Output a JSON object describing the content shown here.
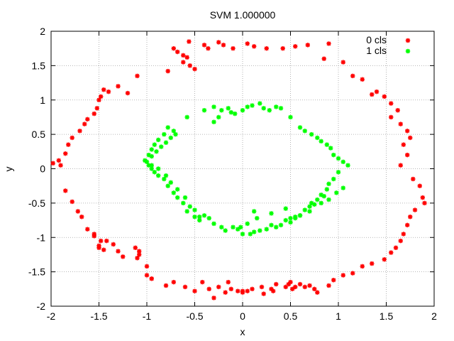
{
  "chart_data": {
    "type": "scatter",
    "title": "SVM 1.000000",
    "xlabel": "x",
    "ylabel": "y",
    "xlim": [
      -2,
      2
    ],
    "ylim": [
      -2,
      2
    ],
    "xticks": [
      -2,
      -1.5,
      -1,
      -0.5,
      0,
      0.5,
      1,
      1.5,
      2
    ],
    "yticks": [
      -2,
      -1.5,
      -1,
      -0.5,
      0,
      0.5,
      1,
      1.5,
      2
    ],
    "xtick_labels": [
      "-2",
      "-1.5",
      "-1",
      "-0.5",
      "0",
      "0.5",
      "1",
      "1.5",
      "2"
    ],
    "ytick_labels": [
      "-2",
      "-1.5",
      "-1",
      "-0.5",
      "0",
      "0.5",
      "1",
      "1.5",
      "2"
    ],
    "grid": true,
    "legend_position": "top-right",
    "series": [
      {
        "name": "0 cls",
        "color": "#ff0000",
        "x": [
          -0.56,
          -0.58,
          -0.4,
          -0.36,
          -0.25,
          -0.2,
          -0.1,
          0.05,
          0.12,
          0.25,
          0.42,
          0.55,
          0.68,
          0.9,
          0.85,
          1.05,
          1.15,
          1.25,
          1.4,
          1.35,
          1.48,
          1.55,
          1.62,
          1.55,
          1.65,
          1.72,
          1.75,
          1.68,
          1.72,
          1.65,
          1.78,
          1.85,
          1.88,
          1.9,
          1.8,
          1.75,
          1.72,
          1.68,
          1.65,
          1.6,
          1.55,
          1.48,
          1.35,
          1.25,
          1.15,
          1.05,
          0.95,
          0.9,
          0.75,
          0.65,
          0.6,
          0.5,
          0.45,
          0.35,
          0.3,
          0.2,
          0.1,
          0.0,
          -0.05,
          -0.12,
          -0.18,
          -0.25,
          -0.35,
          -0.42,
          -0.5,
          -0.6,
          -0.72,
          -0.8,
          -0.95,
          -1.0,
          -1.08,
          -1.12,
          -1.25,
          -1.3,
          -1.35,
          -1.42,
          -1.45,
          -1.5,
          -1.55,
          -1.62,
          -1.68,
          -1.72,
          -1.78,
          -1.85,
          -1.9,
          -1.98,
          -1.92,
          -1.85,
          -1.82,
          -1.78,
          -1.7,
          -1.65,
          -1.62,
          -1.55,
          -1.52,
          -1.5,
          -1.48,
          -1.45,
          -1.4,
          -1.3,
          -1.2,
          -1.1,
          -0.78,
          -0.62,
          -0.55,
          -0.5,
          -0.62,
          -0.68,
          -0.72,
          -1.55,
          -1.48,
          -1.5,
          -1.08,
          -1.1,
          -1.0,
          -0.95,
          0.0,
          0.22,
          0.32,
          0.52,
          0.55,
          0.48,
          0.78,
          0.7,
          -0.15,
          0.05,
          -0.3
        ],
        "y": [
          1.85,
          1.62,
          1.8,
          1.75,
          1.84,
          1.8,
          1.75,
          1.82,
          1.78,
          1.75,
          1.75,
          1.78,
          1.8,
          1.82,
          1.6,
          1.55,
          1.35,
          1.3,
          1.12,
          1.08,
          1.05,
          0.95,
          0.85,
          0.75,
          0.65,
          0.55,
          0.45,
          0.35,
          0.2,
          0.05,
          -0.15,
          -0.25,
          -0.42,
          -0.5,
          -0.6,
          -0.7,
          -0.82,
          -0.95,
          -1.05,
          -1.15,
          -1.22,
          -1.32,
          -1.38,
          -1.42,
          -1.52,
          -1.55,
          -1.62,
          -1.7,
          -1.75,
          -1.72,
          -1.68,
          -1.65,
          -1.72,
          -1.68,
          -1.75,
          -1.72,
          -1.75,
          -1.8,
          -1.78,
          -1.75,
          -1.8,
          -1.72,
          -1.75,
          -1.65,
          -1.78,
          -1.72,
          -1.65,
          -1.7,
          -1.6,
          -1.55,
          -1.25,
          -1.15,
          -1.28,
          -1.2,
          -1.1,
          -1.05,
          -1.18,
          -1.12,
          -0.98,
          -0.88,
          -0.7,
          -0.62,
          -0.48,
          -0.32,
          0.05,
          0.08,
          0.12,
          0.22,
          0.35,
          0.45,
          0.55,
          0.65,
          0.72,
          0.8,
          0.88,
          1.0,
          1.05,
          1.15,
          1.12,
          1.2,
          1.1,
          1.35,
          1.42,
          1.55,
          1.5,
          1.45,
          1.65,
          1.7,
          1.75,
          -0.95,
          -1.05,
          -1.15,
          -1.2,
          -1.3,
          -1.42,
          -1.6,
          -1.78,
          -1.82,
          -1.78,
          -1.75,
          -1.72,
          -1.68,
          -1.8,
          -1.7,
          -1.65,
          -1.78,
          -1.88
        ]
      },
      {
        "name": "1 cls",
        "color": "#00ff00",
        "x": [
          -0.58,
          -0.4,
          -0.3,
          -0.22,
          -0.15,
          -0.08,
          0.0,
          0.05,
          0.1,
          0.18,
          0.22,
          0.28,
          0.35,
          0.4,
          0.5,
          0.6,
          0.65,
          0.72,
          0.78,
          0.82,
          0.88,
          0.92,
          0.95,
          1.0,
          1.05,
          1.1,
          1.0,
          0.95,
          0.9,
          0.88,
          0.82,
          0.78,
          0.72,
          0.7,
          0.65,
          0.6,
          0.55,
          0.5,
          0.45,
          0.4,
          0.35,
          0.3,
          0.25,
          0.18,
          0.12,
          0.08,
          0.0,
          -0.05,
          -0.1,
          -0.18,
          -0.22,
          -0.3,
          -0.35,
          -0.4,
          -0.45,
          -0.5,
          -0.58,
          -0.62,
          -0.68,
          -0.72,
          -0.78,
          -0.82,
          -0.88,
          -0.92,
          -0.95,
          -0.98,
          -1.0,
          -0.95,
          -0.9,
          -0.85,
          -0.8,
          -0.75,
          -0.7,
          -0.72,
          -0.78,
          -0.82,
          -0.88,
          -0.92,
          -0.95,
          -0.98,
          -1.02,
          -0.95,
          -0.88,
          -0.8,
          -0.75,
          -0.68,
          -0.6,
          -0.55,
          -0.5,
          -0.45,
          0.15,
          0.05,
          -0.02,
          0.12,
          0.3,
          0.45,
          0.55,
          0.7,
          0.82,
          0.9,
          0.98,
          1.05,
          0.85,
          0.75,
          0.6,
          0.5,
          -0.25,
          -0.3,
          -0.12
        ],
        "y": [
          0.75,
          0.85,
          0.9,
          0.85,
          0.88,
          0.8,
          0.85,
          0.9,
          0.92,
          0.95,
          0.88,
          0.85,
          0.9,
          0.88,
          0.75,
          0.6,
          0.55,
          0.5,
          0.45,
          0.4,
          0.35,
          0.3,
          0.2,
          0.15,
          0.1,
          0.05,
          -0.05,
          -0.15,
          -0.22,
          -0.3,
          -0.38,
          -0.45,
          -0.5,
          -0.55,
          -0.6,
          -0.68,
          -0.72,
          -0.78,
          -0.75,
          -0.82,
          -0.85,
          -0.82,
          -0.88,
          -0.9,
          -0.92,
          -0.95,
          -0.95,
          -0.88,
          -0.85,
          -0.9,
          -0.85,
          -0.8,
          -0.72,
          -0.68,
          -0.75,
          -0.7,
          -0.62,
          -0.5,
          -0.42,
          -0.35,
          -0.25,
          -0.15,
          -0.1,
          -0.05,
          0.0,
          0.05,
          0.1,
          0.18,
          0.25,
          0.32,
          0.38,
          0.45,
          0.5,
          0.55,
          0.6,
          0.5,
          0.42,
          0.35,
          0.28,
          0.2,
          0.12,
          0.05,
          0.0,
          -0.1,
          -0.2,
          -0.3,
          -0.42,
          -0.55,
          -0.6,
          -0.7,
          -0.72,
          -0.8,
          -0.85,
          -0.62,
          -0.65,
          -0.58,
          -0.7,
          -0.62,
          -0.5,
          -0.45,
          -0.35,
          -0.28,
          -0.4,
          -0.52,
          -0.68,
          -0.72,
          0.75,
          0.68,
          0.82
        ]
      }
    ]
  }
}
